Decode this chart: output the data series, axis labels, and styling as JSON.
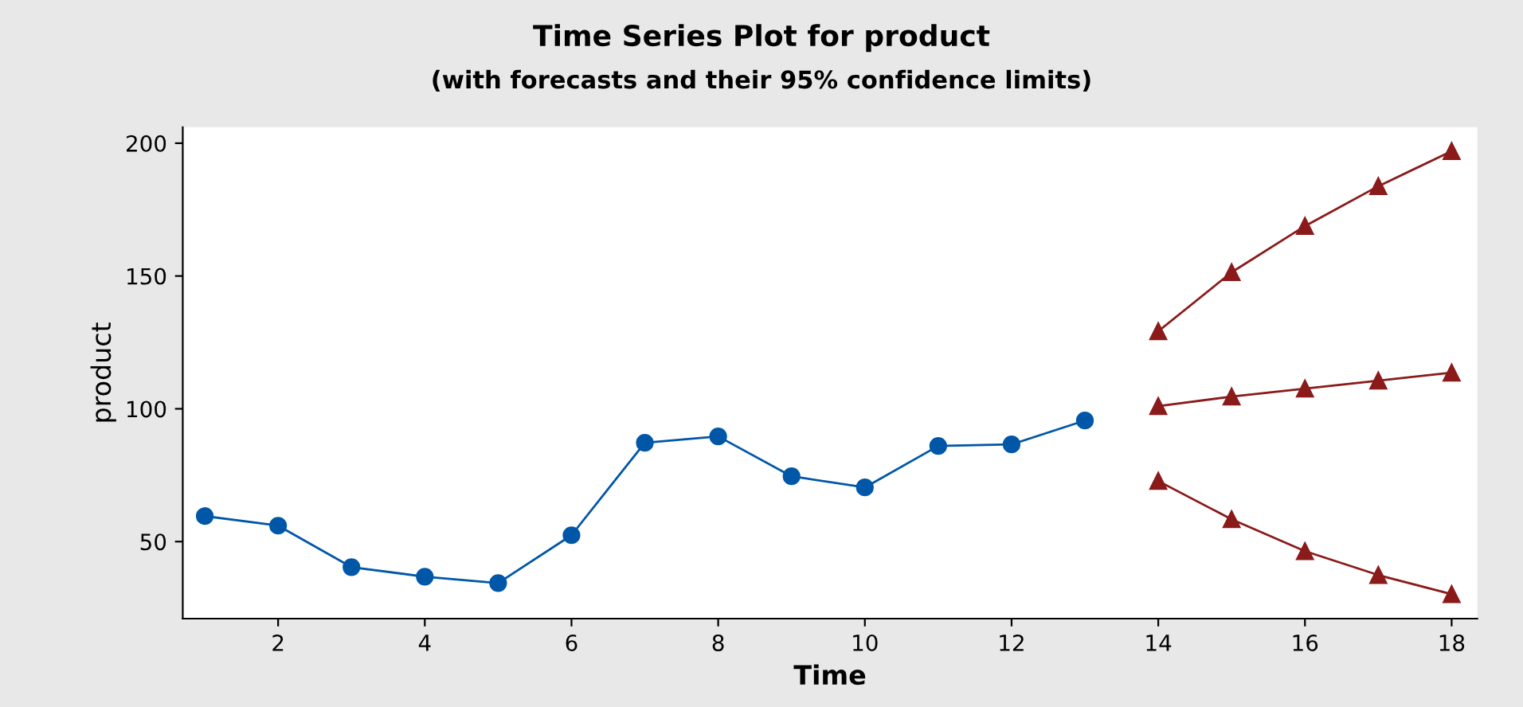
{
  "chart_data": {
    "type": "line",
    "title": "Time Series Plot for product",
    "subtitle": "(with forecasts and their 95% confidence limits)",
    "xlabel": "Time",
    "ylabel": "product",
    "series": [
      {
        "color": "#0057a8",
        "marker": "circle",
        "x": [
          1,
          2,
          3,
          4,
          5,
          6,
          7,
          8,
          9,
          10,
          11,
          12,
          13
        ],
        "values": [
          59.6,
          56,
          40.4,
          36.8,
          34.4,
          52.4,
          87.2,
          89.6,
          74.6,
          70.4,
          86,
          86.6,
          95.6
        ]
      },
      {
        "color": "#8b1a1a",
        "marker": "triangle",
        "x": [
          14,
          15,
          16,
          17,
          18
        ],
        "values": [
          129.2,
          151.4,
          168.8,
          183.8,
          197
        ]
      },
      {
        "color": "#8b1a1a",
        "marker": "triangle",
        "x": [
          14,
          15,
          16,
          17,
          18
        ],
        "values": [
          101,
          104.6,
          107.6,
          110.6,
          113.6
        ]
      },
      {
        "color": "#8b1a1a",
        "marker": "triangle",
        "x": [
          14,
          15,
          16,
          17,
          18
        ],
        "values": [
          72.8,
          58.4,
          46.4,
          37.4,
          30.2
        ]
      }
    ],
    "xlim": [
      0.7,
      18.35
    ],
    "ylim": [
      21,
      206
    ],
    "xticks": [
      2,
      4,
      6,
      8,
      10,
      12,
      14,
      16,
      18
    ],
    "yticks": [
      50,
      100,
      150,
      200
    ],
    "grid": false,
    "line_style": "solid"
  }
}
